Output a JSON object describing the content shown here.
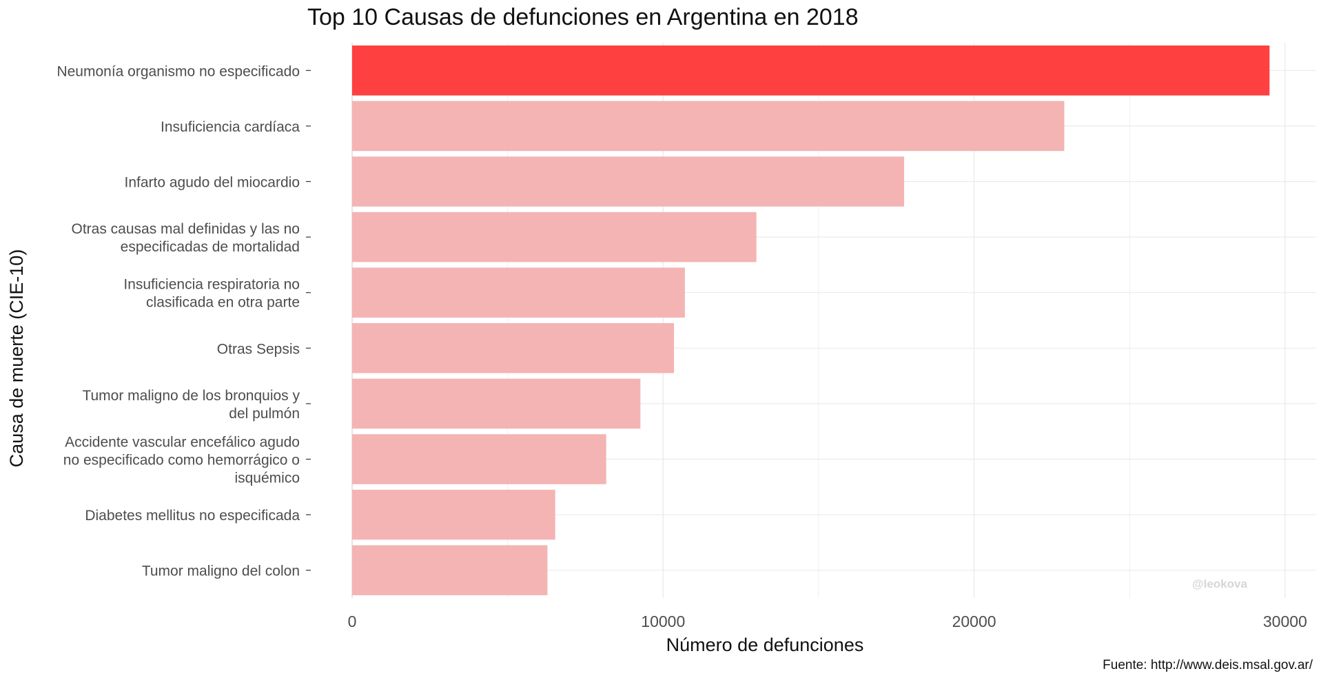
{
  "chart_data": {
    "type": "bar",
    "orientation": "horizontal",
    "title": "Top 10 Causas de defunciones en Argentina en 2018",
    "xlabel": "Número de defunciones",
    "ylabel": "Causa de muerte (CIE-10)",
    "caption": "Fuente: http://www.deis.msal.gov.ar/",
    "watermark": "@leokova",
    "xlim": [
      0,
      31000
    ],
    "x_ticks": [
      0,
      10000,
      20000,
      30000
    ],
    "grid": true,
    "legend": "none",
    "categories": [
      [
        "Neumonía organismo no especificado"
      ],
      [
        "Insuficiencia cardíaca"
      ],
      [
        "Infarto agudo del miocardio"
      ],
      [
        "Otras causas mal definidas y las no",
        "especificadas de mortalidad"
      ],
      [
        "Insuficiencia respiratoria no",
        "clasificada en otra parte"
      ],
      [
        "Otras Sepsis"
      ],
      [
        "Tumor maligno de los bronquios y",
        "del pulmón"
      ],
      [
        "Accidente vascular encefálico agudo",
        "no especificado como hemorrágico o",
        "isquémico"
      ],
      [
        "Diabetes mellitus no especificada"
      ],
      [
        "Tumor maligno del colon"
      ]
    ],
    "values": [
      29500,
      22900,
      17750,
      13000,
      10700,
      10350,
      9270,
      8170,
      6530,
      6280
    ],
    "colors": {
      "highlight": "#ff4040",
      "bar": "#f4b4b4",
      "grid": "#ebebeb",
      "text": "#4d4d4d",
      "watermark": "#d6d6d6"
    }
  }
}
